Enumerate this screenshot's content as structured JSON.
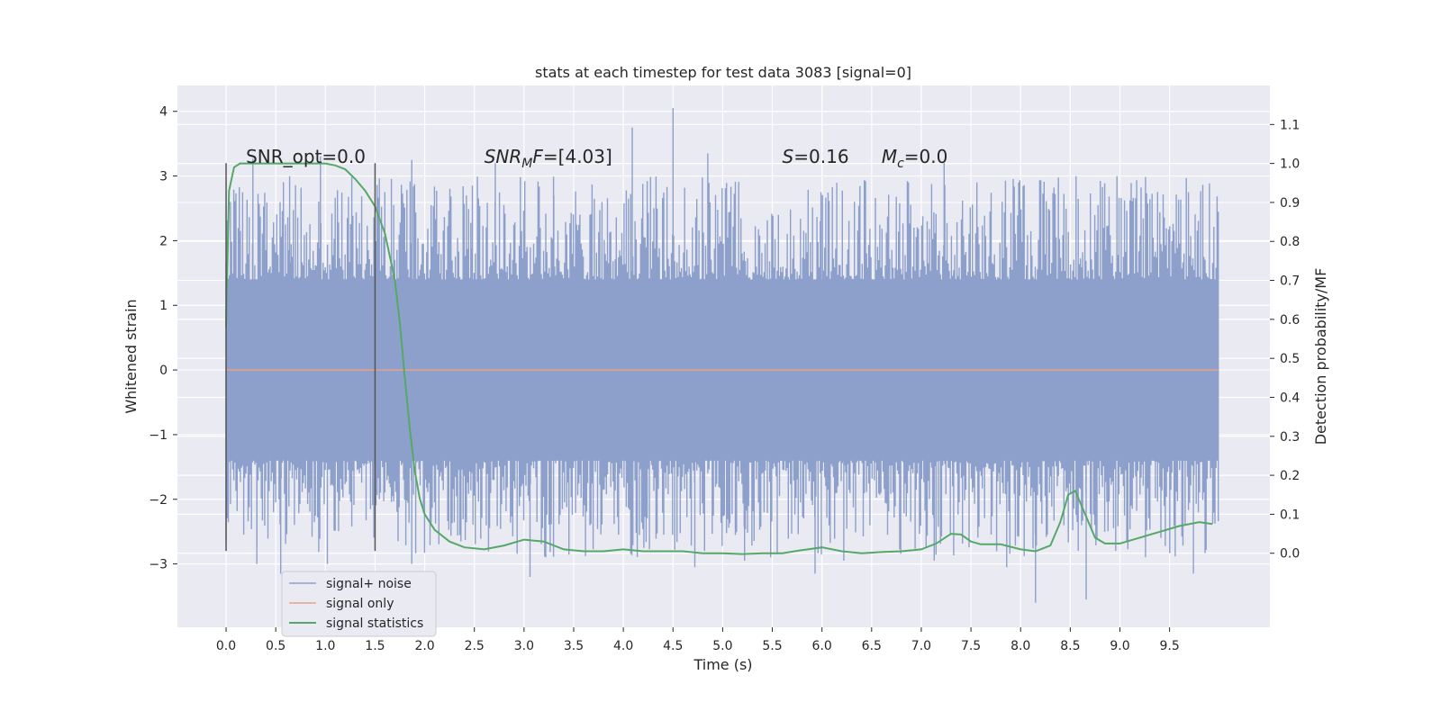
{
  "chart_data": {
    "type": "line",
    "title": "stats at each timestep for test data 3083 [signal=0]",
    "xlabel": "Time (s)",
    "ylabel": "Whitened strain",
    "y2label": "Detection probability/MF",
    "xlim": [
      -0.49,
      10.51
    ],
    "ylim": [
      -3.98,
      4.4
    ],
    "y2lim": [
      -0.19,
      1.2
    ],
    "x_ticks": [
      "0.0",
      "0.5",
      "1.0",
      "1.5",
      "2.0",
      "2.5",
      "3.0",
      "3.5",
      "4.0",
      "4.5",
      "5.0",
      "5.5",
      "6.0",
      "6.5",
      "7.0",
      "7.5",
      "8.0",
      "8.5",
      "9.0",
      "9.5"
    ],
    "y_ticks": [
      "−3",
      "−2",
      "−1",
      "0",
      "1",
      "2",
      "3",
      "4"
    ],
    "y2_ticks": [
      "0.0",
      "0.1",
      "0.2",
      "0.3",
      "0.4",
      "0.5",
      "0.6",
      "0.7",
      "0.8",
      "0.9",
      "1.0",
      "1.1"
    ],
    "grid": true,
    "legend_position": "lower-left",
    "series": [
      {
        "name": "signal+ noise",
        "axis": "left",
        "color": "#8da0cb",
        "x_range": [
          0.0,
          9.99
        ],
        "core_band": [
          -1.4,
          1.4
        ],
        "peaks": [
          {
            "x": 0.27,
            "y": 3.27
          },
          {
            "x": 0.64,
            "y": 3.0
          },
          {
            "x": 0.95,
            "y": 3.3
          },
          {
            "x": 1.87,
            "y": 3.25
          },
          {
            "x": 2.48,
            "y": 2.85
          },
          {
            "x": 2.71,
            "y": 3.2
          },
          {
            "x": 3.3,
            "y": 2.7
          },
          {
            "x": 4.09,
            "y": 3.75
          },
          {
            "x": 4.5,
            "y": 4.05
          },
          {
            "x": 4.85,
            "y": 3.35
          },
          {
            "x": 5.99,
            "y": 2.75
          },
          {
            "x": 7.23,
            "y": 3.2
          },
          {
            "x": 7.56,
            "y": 2.9
          },
          {
            "x": 8.38,
            "y": 2.9
          },
          {
            "x": 8.97,
            "y": 3.0
          },
          {
            "x": 9.69,
            "y": 2.75
          }
        ],
        "troughs": [
          {
            "x": 0.31,
            "y": -3.0
          },
          {
            "x": 0.55,
            "y": -3.15
          },
          {
            "x": 1.02,
            "y": -3.0
          },
          {
            "x": 1.87,
            "y": -3.0
          },
          {
            "x": 3.06,
            "y": -3.2
          },
          {
            "x": 4.72,
            "y": -3.05
          },
          {
            "x": 5.22,
            "y": -2.95
          },
          {
            "x": 5.93,
            "y": -3.15
          },
          {
            "x": 6.22,
            "y": -2.95
          },
          {
            "x": 7.13,
            "y": -2.95
          },
          {
            "x": 7.86,
            "y": -3.05
          },
          {
            "x": 8.15,
            "y": -3.6
          },
          {
            "x": 8.66,
            "y": -3.55
          },
          {
            "x": 9.74,
            "y": -3.15
          }
        ]
      },
      {
        "name": "signal only",
        "axis": "left",
        "color": "#e5a187",
        "x": [
          0.0,
          9.99
        ],
        "y": [
          0.0,
          0.0
        ]
      },
      {
        "name": "signal statistics",
        "axis": "right",
        "color": "#55a868",
        "x": [
          0.0,
          0.03,
          0.08,
          0.14,
          0.2,
          0.3,
          0.5,
          0.8,
          1.0,
          1.1,
          1.2,
          1.3,
          1.4,
          1.5,
          1.6,
          1.7,
          1.75,
          1.8,
          1.85,
          1.9,
          1.95,
          2.0,
          2.1,
          2.25,
          2.4,
          2.6,
          2.8,
          3.0,
          3.2,
          3.4,
          3.6,
          3.8,
          4.0,
          4.2,
          4.4,
          4.6,
          4.8,
          5.0,
          5.2,
          5.4,
          5.6,
          5.8,
          6.0,
          6.2,
          6.4,
          6.6,
          6.8,
          7.0,
          7.15,
          7.3,
          7.4,
          7.5,
          7.6,
          7.8,
          8.0,
          8.15,
          8.3,
          8.4,
          8.48,
          8.55,
          8.65,
          8.75,
          8.85,
          9.0,
          9.2,
          9.4,
          9.6,
          9.8,
          9.93
        ],
        "y": [
          0.58,
          0.93,
          0.99,
          1.0,
          1.0,
          1.0,
          1.0,
          1.0,
          1.0,
          0.995,
          0.985,
          0.96,
          0.93,
          0.89,
          0.82,
          0.7,
          0.59,
          0.45,
          0.32,
          0.21,
          0.14,
          0.1,
          0.06,
          0.03,
          0.015,
          0.01,
          0.02,
          0.035,
          0.03,
          0.01,
          0.005,
          0.005,
          0.01,
          0.005,
          0.005,
          0.005,
          0.0,
          0.0,
          -0.002,
          0.0,
          0.0,
          0.008,
          0.015,
          0.005,
          0.0,
          0.003,
          0.005,
          0.01,
          0.025,
          0.05,
          0.048,
          0.03,
          0.023,
          0.023,
          0.01,
          0.005,
          0.02,
          0.08,
          0.15,
          0.16,
          0.1,
          0.04,
          0.025,
          0.025,
          0.04,
          0.055,
          0.07,
          0.08,
          0.075
        ]
      }
    ],
    "vlines": [
      {
        "x": 0.0,
        "ymin": -2.8,
        "ymax": 3.2
      },
      {
        "x": 1.5,
        "ymin": -2.8,
        "ymax": 3.2
      }
    ],
    "annotations": [
      {
        "key": "snr_opt",
        "text": "SNR_opt=0.0",
        "x": 0.2,
        "y": 3.2
      },
      {
        "key": "snr_mf",
        "base": "SNR",
        "sub": "M",
        "tail": "F=[4.03]",
        "x": 2.6,
        "y": 3.2
      },
      {
        "key": "s_stat",
        "base": "S",
        "tail": "=0.16",
        "x": 5.6,
        "y": 3.2
      },
      {
        "key": "mc_stat",
        "base": "M",
        "sub": "c",
        "tail": "=0.0",
        "x": 6.6,
        "y": 3.2
      }
    ],
    "background": "#eaeaf2",
    "grid_color": "#ffffff"
  }
}
